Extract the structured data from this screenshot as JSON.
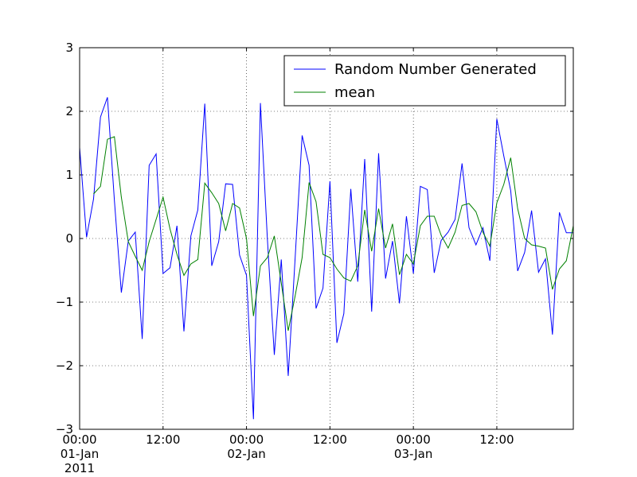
{
  "chart_data": {
    "type": "line",
    "x": [
      "2011-01-01 00:00",
      "2011-01-01 01:00",
      "2011-01-01 02:00",
      "2011-01-01 03:00",
      "2011-01-01 04:00",
      "2011-01-01 05:00",
      "2011-01-01 06:00",
      "2011-01-01 07:00",
      "2011-01-01 08:00",
      "2011-01-01 09:00",
      "2011-01-01 10:00",
      "2011-01-01 11:00",
      "2011-01-01 12:00",
      "2011-01-01 13:00",
      "2011-01-01 14:00",
      "2011-01-01 15:00",
      "2011-01-01 16:00",
      "2011-01-01 17:00",
      "2011-01-01 18:00",
      "2011-01-01 19:00",
      "2011-01-01 20:00",
      "2011-01-01 21:00",
      "2011-01-01 22:00",
      "2011-01-01 23:00",
      "2011-01-02 00:00",
      "2011-01-02 01:00",
      "2011-01-02 02:00",
      "2011-01-02 03:00",
      "2011-01-02 04:00",
      "2011-01-02 05:00",
      "2011-01-02 06:00",
      "2011-01-02 07:00",
      "2011-01-02 08:00",
      "2011-01-02 09:00",
      "2011-01-02 10:00",
      "2011-01-02 11:00",
      "2011-01-02 12:00",
      "2011-01-02 13:00",
      "2011-01-02 14:00",
      "2011-01-02 15:00",
      "2011-01-02 16:00",
      "2011-01-02 17:00",
      "2011-01-02 18:00",
      "2011-01-02 19:00",
      "2011-01-02 20:00",
      "2011-01-02 21:00",
      "2011-01-02 22:00",
      "2011-01-02 23:00",
      "2011-01-03 00:00",
      "2011-01-03 01:00",
      "2011-01-03 02:00",
      "2011-01-03 03:00",
      "2011-01-03 04:00",
      "2011-01-03 05:00",
      "2011-01-03 06:00",
      "2011-01-03 07:00",
      "2011-01-03 08:00",
      "2011-01-03 09:00",
      "2011-01-03 10:00",
      "2011-01-03 11:00",
      "2011-01-03 12:00",
      "2011-01-03 13:00",
      "2011-01-03 14:00",
      "2011-01-03 15:00",
      "2011-01-03 16:00",
      "2011-01-03 17:00",
      "2011-01-03 18:00",
      "2011-01-03 19:00",
      "2011-01-03 20:00",
      "2011-01-03 21:00",
      "2011-01-03 22:00",
      "2011-01-03 23:00"
    ],
    "series": [
      {
        "name": "Random Number Generated",
        "color": "#0000ff",
        "values": [
          1.43,
          0.02,
          0.62,
          1.91,
          2.22,
          0.6,
          -0.85,
          -0.04,
          0.1,
          -1.58,
          1.15,
          1.33,
          -0.55,
          -0.46,
          0.2,
          -1.46,
          0.04,
          0.45,
          2.12,
          -0.43,
          -0.05,
          0.86,
          0.85,
          -0.26,
          -0.58,
          -2.84,
          2.13,
          0.0,
          -1.83,
          -0.33,
          -2.16,
          -0.3,
          1.62,
          1.15,
          -1.1,
          -0.78,
          0.9,
          -1.64,
          -1.18,
          0.78,
          -0.68,
          1.25,
          -1.15,
          1.34,
          -0.63,
          -0.04,
          -1.02,
          0.35,
          -0.55,
          0.82,
          0.77,
          -0.54,
          -0.03,
          0.1,
          0.3,
          1.18,
          0.17,
          -0.1,
          0.17,
          -0.35,
          1.88,
          1.3,
          0.75,
          -0.51,
          -0.22,
          0.44,
          -0.53,
          -0.32,
          -1.51,
          0.41,
          0.09,
          0.09
        ]
      },
      {
        "name": "mean",
        "color": "#008000",
        "values": [
          null,
          null,
          0.7,
          0.82,
          1.56,
          1.6,
          0.65,
          -0.05,
          -0.28,
          -0.5,
          -0.05,
          0.3,
          0.65,
          0.15,
          -0.25,
          -0.58,
          -0.4,
          -0.33,
          0.87,
          0.72,
          0.55,
          0.12,
          0.55,
          0.48,
          0.0,
          -1.22,
          -0.43,
          -0.3,
          0.04,
          -0.7,
          -1.45,
          -0.9,
          -0.3,
          0.88,
          0.58,
          -0.25,
          -0.3,
          -0.48,
          -0.62,
          -0.67,
          -0.43,
          0.45,
          -0.2,
          0.47,
          -0.15,
          0.23,
          -0.57,
          -0.25,
          -0.4,
          0.2,
          0.35,
          0.35,
          0.05,
          -0.15,
          0.1,
          0.52,
          0.55,
          0.42,
          0.1,
          -0.12,
          0.56,
          0.85,
          1.27,
          0.47,
          0.0,
          -0.1,
          -0.12,
          -0.15,
          -0.8,
          -0.48,
          -0.35,
          0.2
        ]
      }
    ],
    "xlim": [
      "2011-01-01 00:00",
      "2011-01-03 23:00"
    ],
    "xticks": [
      {
        "value": "2011-01-01 00:00",
        "label": "00:00\n01-Jan\n2011"
      },
      {
        "value": "2011-01-01 12:00",
        "label": "12:00"
      },
      {
        "value": "2011-01-02 00:00",
        "label": "00:00\n02-Jan"
      },
      {
        "value": "2011-01-02 12:00",
        "label": "12:00"
      },
      {
        "value": "2011-01-03 00:00",
        "label": "00:00\n03-Jan"
      },
      {
        "value": "2011-01-03 12:00",
        "label": "12:00"
      }
    ],
    "ylim": [
      -3,
      3
    ],
    "yticks": [
      {
        "value": -3,
        "label": "−3"
      },
      {
        "value": -2,
        "label": "−2"
      },
      {
        "value": -1,
        "label": "−1"
      },
      0,
      1,
      2,
      3
    ],
    "grid": true,
    "legend": "upper right"
  }
}
